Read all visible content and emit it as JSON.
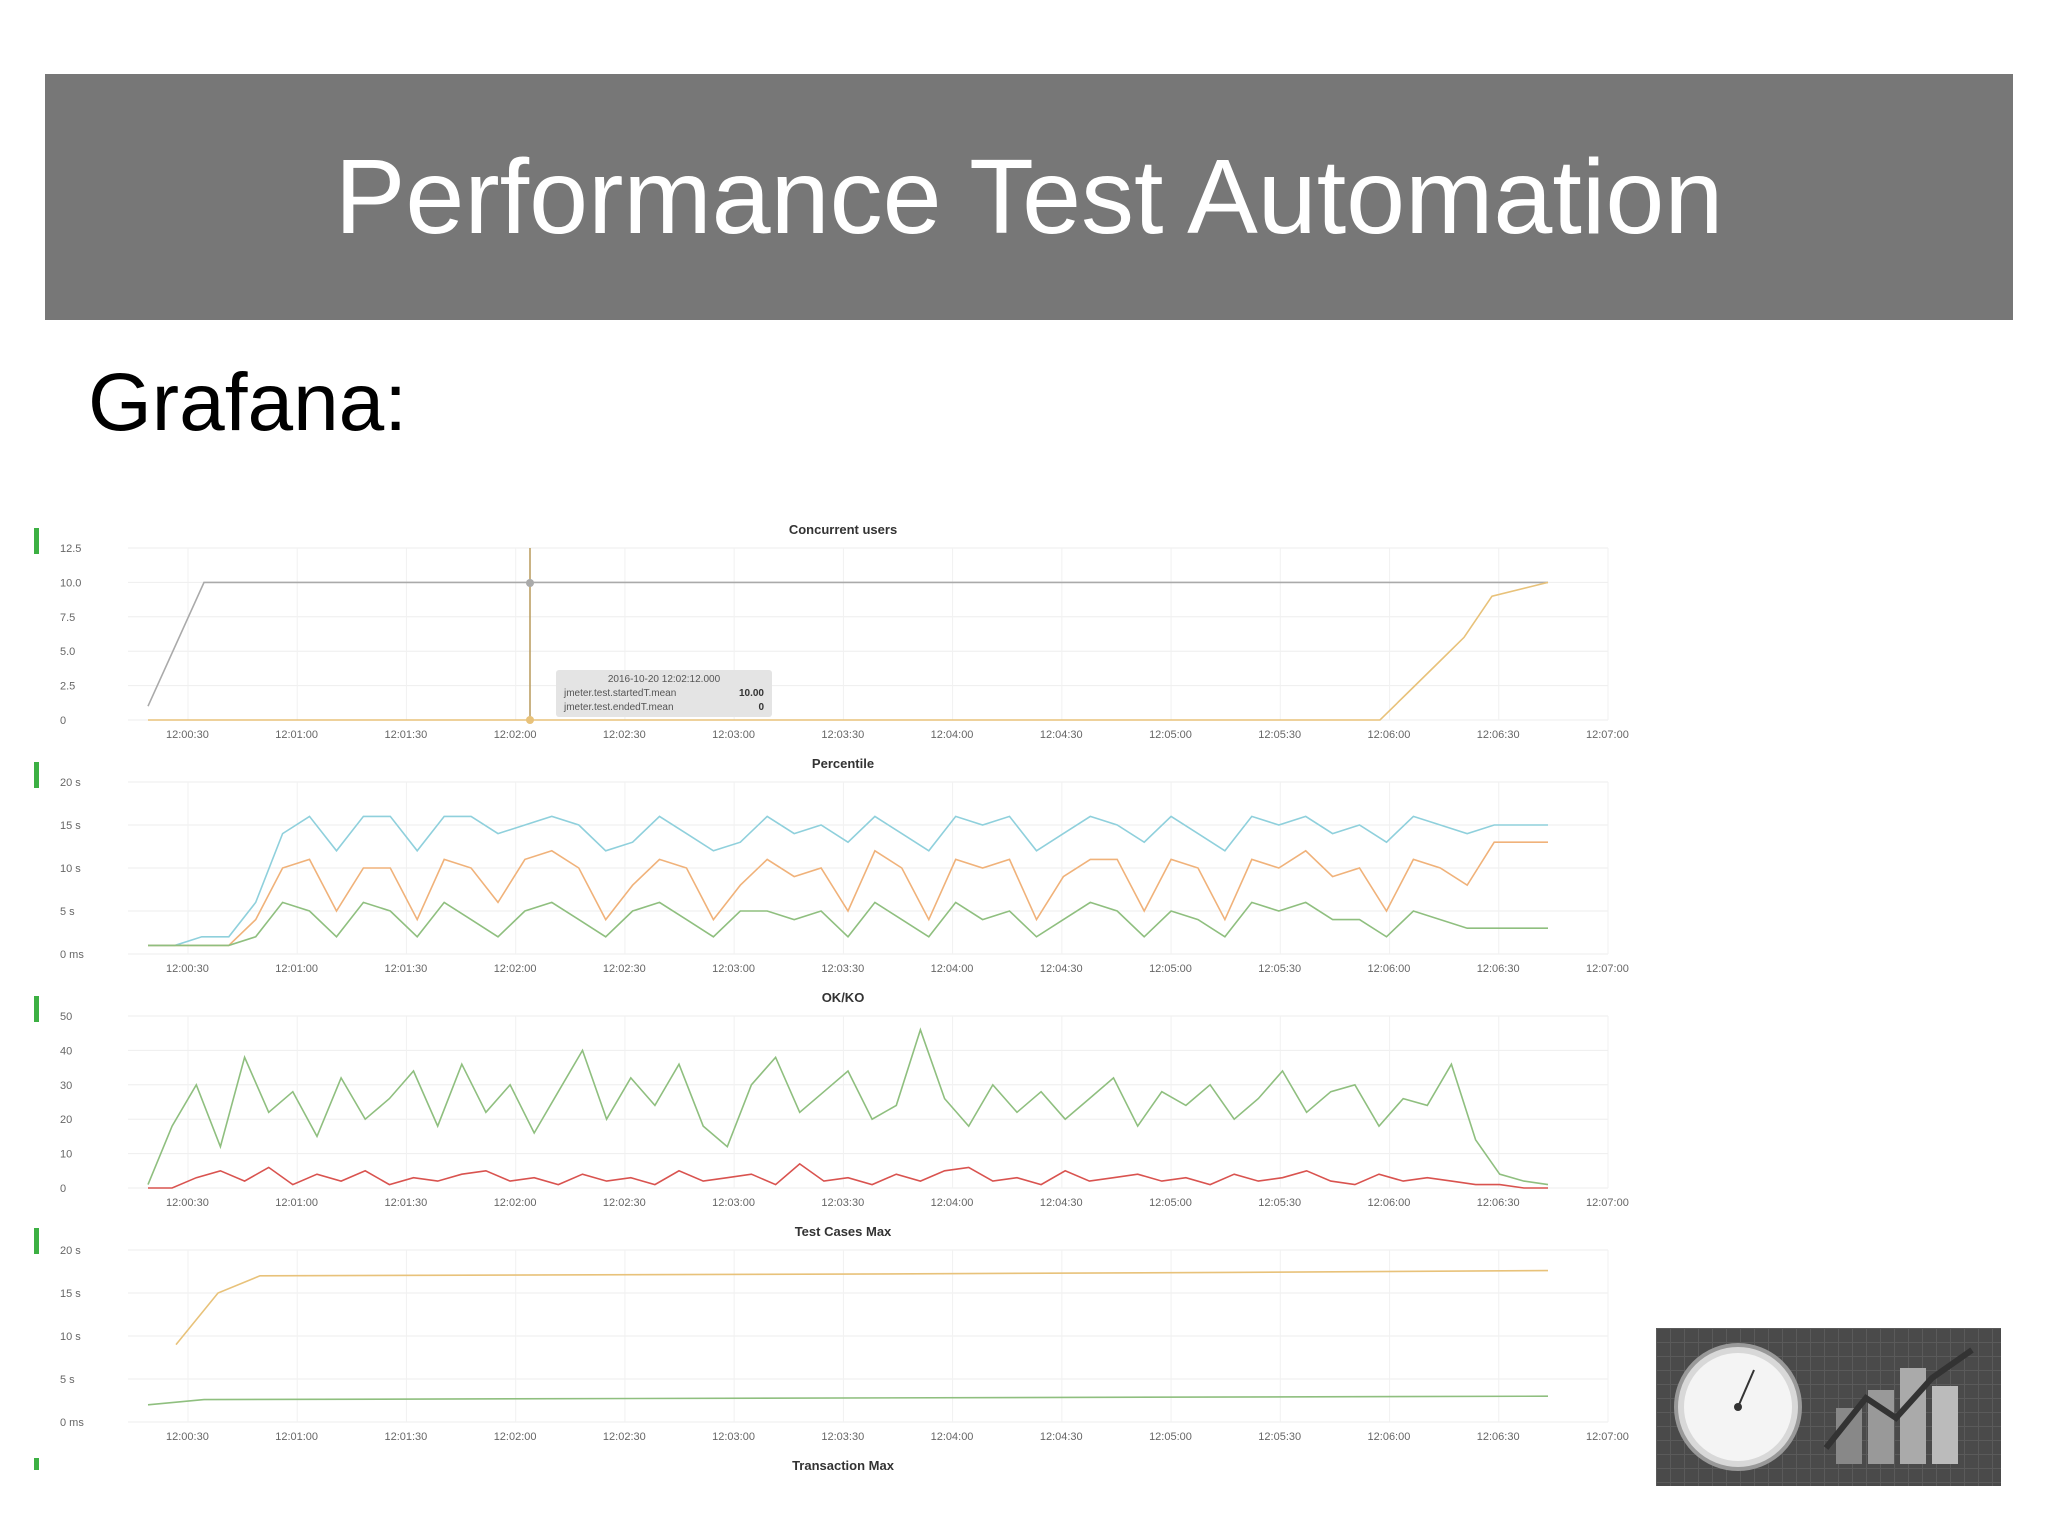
{
  "slide": {
    "title": "Performance Test Automation",
    "subtitle": "Grafana:"
  },
  "x_ticks": [
    "12:00:30",
    "12:01:00",
    "12:01:30",
    "12:02:00",
    "12:02:30",
    "12:03:00",
    "12:03:30",
    "12:04:00",
    "12:04:30",
    "12:05:00",
    "12:05:30",
    "12:06:00",
    "12:06:30",
    "12:07:00"
  ],
  "colors": {
    "title_bar": "#777777",
    "green_marker": "#3cb043",
    "series_gray": "#aaaaaa",
    "series_yellow": "#e8c27a",
    "series_cyan": "#8fd0dc",
    "series_orange": "#f0b27a",
    "series_green": "#8fbf7f",
    "series_red": "#d9534f"
  },
  "tooltip": {
    "time": "2016-10-20 12:02:12.000",
    "rows": [
      {
        "label": "jmeter.test.startedT.mean",
        "value": "10.00"
      },
      {
        "label": "jmeter.test.endedT.mean",
        "value": "0"
      }
    ]
  },
  "chart_data": [
    {
      "type": "line",
      "title": "Concurrent users",
      "y_ticks": [
        "12.5",
        "10.0",
        "7.5",
        "5.0",
        "2.5",
        "0"
      ],
      "ylim": [
        0,
        12.5
      ],
      "series": [
        {
          "color": "gray",
          "x": [
            0,
            0.04,
            0.5,
            0.96,
            1.0
          ],
          "values": [
            1,
            10,
            10,
            10,
            10
          ]
        },
        {
          "color": "yellow",
          "x": [
            0,
            0.88,
            0.9,
            0.92,
            0.94,
            0.96,
            1.0
          ],
          "values": [
            0,
            0,
            2,
            4,
            6,
            9,
            10
          ]
        }
      ]
    },
    {
      "type": "line",
      "title": "Percentile",
      "y_ticks": [
        "20 s",
        "15 s",
        "10 s",
        "5 s",
        "0 ms"
      ],
      "ylim": [
        0,
        20
      ],
      "series": [
        {
          "color": "cyan",
          "values": [
            1,
            1,
            2,
            2,
            6,
            14,
            16,
            12,
            16,
            16,
            12,
            16,
            16,
            14,
            15,
            16,
            15,
            12,
            13,
            16,
            14,
            12,
            13,
            16,
            14,
            15,
            13,
            16,
            14,
            12,
            16,
            15,
            16,
            12,
            14,
            16,
            15,
            13,
            16,
            14,
            12,
            16,
            15,
            16,
            14,
            15,
            13,
            16,
            15,
            14,
            15,
            15,
            15
          ]
        },
        {
          "color": "orange",
          "values": [
            1,
            1,
            1,
            1,
            4,
            10,
            11,
            5,
            10,
            10,
            4,
            11,
            10,
            6,
            11,
            12,
            10,
            4,
            8,
            11,
            10,
            4,
            8,
            11,
            9,
            10,
            5,
            12,
            10,
            4,
            11,
            10,
            11,
            4,
            9,
            11,
            11,
            5,
            11,
            10,
            4,
            11,
            10,
            12,
            9,
            10,
            5,
            11,
            10,
            8,
            13,
            13,
            13
          ]
        },
        {
          "color": "green",
          "values": [
            1,
            1,
            1,
            1,
            2,
            6,
            5,
            2,
            6,
            5,
            2,
            6,
            4,
            2,
            5,
            6,
            4,
            2,
            5,
            6,
            4,
            2,
            5,
            5,
            4,
            5,
            2,
            6,
            4,
            2,
            6,
            4,
            5,
            2,
            4,
            6,
            5,
            2,
            5,
            4,
            2,
            6,
            5,
            6,
            4,
            4,
            2,
            5,
            4,
            3,
            3,
            3,
            3
          ]
        }
      ]
    },
    {
      "type": "line",
      "title": "OK/KO",
      "y_ticks": [
        "50",
        "40",
        "30",
        "20",
        "10",
        "0"
      ],
      "ylim": [
        0,
        50
      ],
      "series": [
        {
          "color": "green",
          "values": [
            1,
            18,
            30,
            12,
            38,
            22,
            28,
            15,
            32,
            20,
            26,
            34,
            18,
            36,
            22,
            30,
            16,
            28,
            40,
            20,
            32,
            24,
            36,
            18,
            12,
            30,
            38,
            22,
            28,
            34,
            20,
            24,
            46,
            26,
            18,
            30,
            22,
            28,
            20,
            26,
            32,
            18,
            28,
            24,
            30,
            20,
            26,
            34,
            22,
            28,
            30,
            18,
            26,
            24,
            36,
            14,
            4,
            2,
            1
          ]
        },
        {
          "color": "red",
          "values": [
            0,
            0,
            3,
            5,
            2,
            6,
            1,
            4,
            2,
            5,
            1,
            3,
            2,
            4,
            5,
            2,
            3,
            1,
            4,
            2,
            3,
            1,
            5,
            2,
            3,
            4,
            1,
            7,
            2,
            3,
            1,
            4,
            2,
            5,
            6,
            2,
            3,
            1,
            5,
            2,
            3,
            4,
            2,
            3,
            1,
            4,
            2,
            3,
            5,
            2,
            1,
            4,
            2,
            3,
            2,
            1,
            1,
            0,
            0
          ]
        }
      ]
    },
    {
      "type": "line",
      "title": "Test Cases Max",
      "y_ticks": [
        "20 s",
        "15 s",
        "10 s",
        "5 s",
        "0 ms"
      ],
      "ylim": [
        0,
        20
      ],
      "series": [
        {
          "color": "yellow",
          "x": [
            0.02,
            0.05,
            0.08,
            0.5,
            0.77,
            1.0
          ],
          "values": [
            9,
            15,
            17,
            17.2,
            17.4,
            17.6
          ]
        },
        {
          "color": "green",
          "x": [
            0.0,
            0.04,
            1.0
          ],
          "values": [
            2,
            2.6,
            3
          ]
        }
      ]
    },
    {
      "type": "line",
      "title": "Transaction Max",
      "series": []
    }
  ]
}
